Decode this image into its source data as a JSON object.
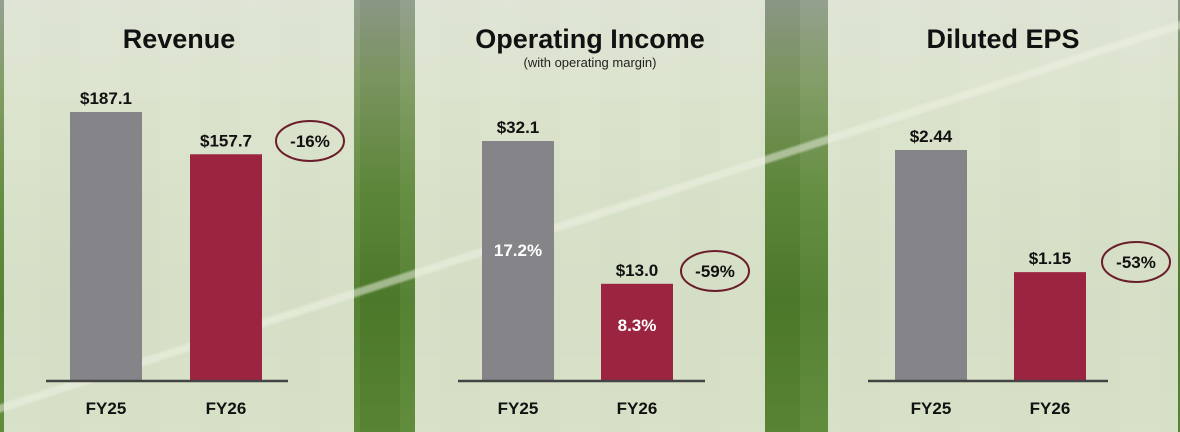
{
  "colors": {
    "prior": "#858589",
    "current": "#9b2540",
    "axis": "#444444",
    "oval": "#6b1d2c"
  },
  "chart_data": [
    {
      "type": "bar",
      "title": "Revenue",
      "subtitle": "",
      "categories": [
        "FY25",
        "FY26"
      ],
      "values": [
        187.1,
        157.7
      ],
      "value_labels": [
        "$187.1",
        "$157.7"
      ],
      "inner_labels": [
        "",
        ""
      ],
      "change_label": "-16%",
      "ylim": [
        0,
        230
      ]
    },
    {
      "type": "bar",
      "title": "Operating Income",
      "subtitle": "(with operating margin)",
      "categories": [
        "FY25",
        "FY26"
      ],
      "values": [
        32.1,
        13.0
      ],
      "value_labels": [
        "$32.1",
        "$13.0"
      ],
      "inner_labels": [
        "17.2%",
        "8.3%"
      ],
      "change_label": "-59%",
      "ylim": [
        0,
        41.5
      ]
    },
    {
      "type": "bar",
      "title": "Diluted EPS",
      "subtitle": "",
      "categories": [
        "FY25",
        "FY26"
      ],
      "values": [
        2.44,
        1.15
      ],
      "value_labels": [
        "$2.44",
        "$1.15"
      ],
      "inner_labels": [
        "",
        ""
      ],
      "change_label": "-53%",
      "ylim": [
        0,
        3.2
      ]
    }
  ]
}
